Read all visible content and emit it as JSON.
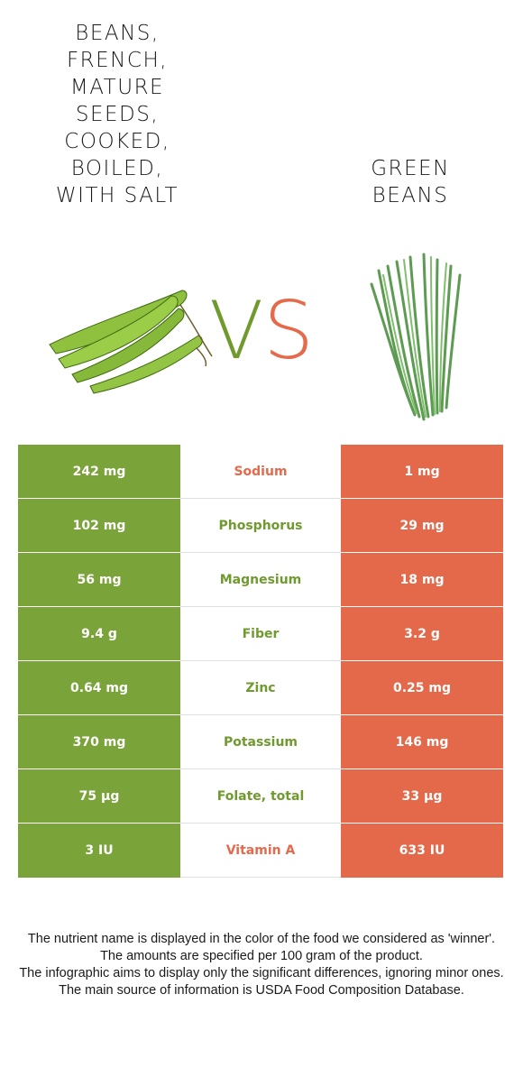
{
  "left_food": {
    "title": "Beans,\nfrench,\nmature\nseeds,\ncooked,\nboiled,\nwith salt",
    "image_icon": "broad-beans-image"
  },
  "right_food": {
    "title": "Green\nbeans",
    "image_icon": "green-beans-image"
  },
  "vs": {
    "v": "V",
    "s": "S"
  },
  "colors": {
    "left": "#7aa33a",
    "right": "#e4694a",
    "neutral": "#ffffff"
  },
  "rows": [
    {
      "nutrient": "Sodium",
      "left": "242 mg",
      "right": "1 mg",
      "winner": "right"
    },
    {
      "nutrient": "Phosphorus",
      "left": "102 mg",
      "right": "29 mg",
      "winner": "left"
    },
    {
      "nutrient": "Magnesium",
      "left": "56 mg",
      "right": "18 mg",
      "winner": "left"
    },
    {
      "nutrient": "Fiber",
      "left": "9.4 g",
      "right": "3.2 g",
      "winner": "left"
    },
    {
      "nutrient": "Zinc",
      "left": "0.64 mg",
      "right": "0.25 mg",
      "winner": "left"
    },
    {
      "nutrient": "Potassium",
      "left": "370 mg",
      "right": "146 mg",
      "winner": "left"
    },
    {
      "nutrient": "Folate, total",
      "left": "75 µg",
      "right": "33 µg",
      "winner": "left"
    },
    {
      "nutrient": "Vitamin A",
      "left": "3 IU",
      "right": "633 IU",
      "winner": "right"
    }
  ],
  "footer": [
    "The nutrient name is displayed in the color of the food we considered as 'winner'.",
    "The amounts are specified per 100 gram of the product.",
    "The infographic aims to display only the significant differences, ignoring minor ones.",
    "The main source of information is USDA Food Composition Database."
  ]
}
